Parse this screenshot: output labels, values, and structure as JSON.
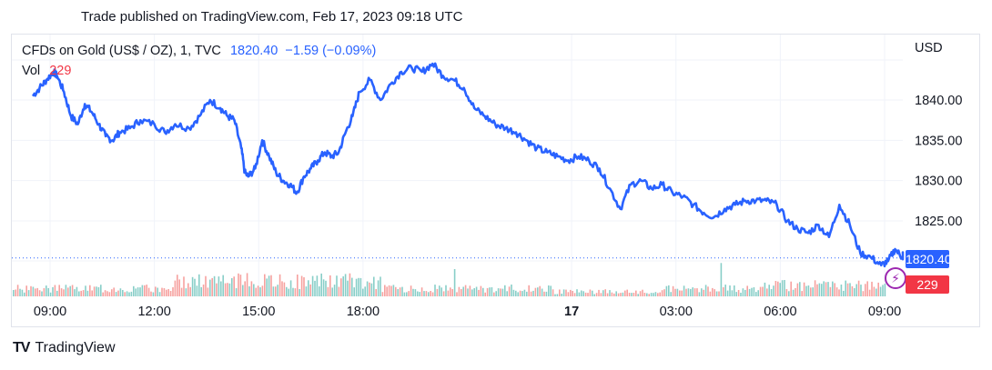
{
  "caption": "Trade published on TradingView.com, Feb 17, 2023 09:18 UTC",
  "legend": {
    "symbol": "CFDs on Gold (US$ / OZ), 1, TVC",
    "price": "1820.40",
    "change": "−1.59 (−0.09%)"
  },
  "volume": {
    "label": "Vol",
    "value": "229"
  },
  "currency": "USD",
  "price_tag": "1820.40",
  "volume_tag": "229",
  "brand": {
    "name": "TradingView",
    "logo": "TV"
  },
  "colors": {
    "line": "#2962ff",
    "vol_up": "#26a69a",
    "vol_down": "#ef5350",
    "grid": "#f0f3fa",
    "last_price": "#2962ff",
    "vol_tag": "#f23645"
  },
  "chart_data": {
    "type": "line",
    "title": "CFDs on Gold (US$ / OZ), 1, TVC",
    "ylabel": "USD",
    "ylim": [
      1817,
      1845
    ],
    "yticks": [
      "1840.00",
      "1835.00",
      "1830.00",
      "1825.00"
    ],
    "ytick_values": [
      1840,
      1835,
      1830,
      1825
    ],
    "xticks": [
      "09:00",
      "12:00",
      "15:00",
      "18:00",
      "17",
      "03:00",
      "06:00",
      "09:00"
    ],
    "xtick_hours": [
      0,
      3,
      6,
      9,
      15,
      18,
      21,
      24
    ],
    "x_unit": "hours after Feb 16, 2023 09:00 UTC",
    "series": [
      {
        "x": [
          -0.5,
          -0.3,
          -0.1,
          0.1,
          0.2,
          0.4,
          0.6,
          0.8,
          1.0,
          1.2,
          1.4,
          1.6,
          1.8,
          2.0,
          2.3,
          2.6,
          3.0,
          3.3,
          3.6,
          4.0,
          4.3,
          4.6,
          4.9,
          5.1,
          5.3,
          5.5,
          5.6,
          5.7,
          5.9,
          6.1,
          6.3,
          6.5,
          6.7,
          6.9,
          7.1,
          7.3,
          7.5,
          7.7,
          7.9,
          8.1,
          8.3,
          8.5,
          8.7,
          8.9,
          9.2,
          9.5,
          9.8,
          10.1,
          10.4,
          10.7,
          11.0,
          11.3,
          11.6,
          11.9,
          12.2,
          12.5,
          12.8,
          13.1,
          13.4,
          13.7,
          14.0,
          14.3,
          14.6,
          14.9,
          15.2,
          15.5,
          15.8,
          16.1,
          16.4,
          16.7,
          17.0,
          17.3,
          17.6,
          17.9,
          18.2,
          18.5,
          18.8,
          19.1,
          19.4,
          19.7,
          20.0,
          20.3,
          20.6,
          20.9,
          21.2,
          21.5,
          21.8,
          22.1,
          22.4,
          22.7,
          23.0,
          23.3,
          23.6,
          23.9,
          24.1,
          24.3,
          24.5,
          24.7
        ],
        "values": [
          1840.5,
          1841.5,
          1842.5,
          1843.5,
          1843.0,
          1841.0,
          1838.0,
          1837.0,
          1839.5,
          1838.5,
          1837.0,
          1835.5,
          1835.0,
          1836.0,
          1836.5,
          1837.5,
          1837.0,
          1836.0,
          1837.0,
          1836.5,
          1838.0,
          1840.0,
          1839.0,
          1838.0,
          1837.5,
          1834.0,
          1831.0,
          1830.5,
          1831.5,
          1835.0,
          1833.0,
          1831.0,
          1830.0,
          1829.5,
          1828.5,
          1830.5,
          1831.5,
          1832.5,
          1833.5,
          1833.0,
          1833.5,
          1836.0,
          1838.0,
          1841.0,
          1842.5,
          1840.0,
          1842.0,
          1843.5,
          1844.0,
          1843.5,
          1844.5,
          1843.0,
          1842.5,
          1841.5,
          1839.0,
          1838.0,
          1837.0,
          1836.5,
          1836.0,
          1835.0,
          1834.0,
          1833.5,
          1833.0,
          1832.5,
          1833.0,
          1832.5,
          1831.5,
          1829.0,
          1826.5,
          1829.5,
          1830.0,
          1829.0,
          1829.5,
          1828.5,
          1828.0,
          1827.0,
          1826.0,
          1825.5,
          1826.5,
          1827.0,
          1827.5,
          1827.5,
          1827.5,
          1827.0,
          1825.0,
          1824.0,
          1823.5,
          1824.5,
          1823.0,
          1827.0,
          1824.5,
          1821.0,
          1820.5,
          1819.5,
          1820.0,
          1821.5,
          1820.5,
          1821.0
        ]
      }
    ],
    "volume": {
      "last": 229
    }
  }
}
